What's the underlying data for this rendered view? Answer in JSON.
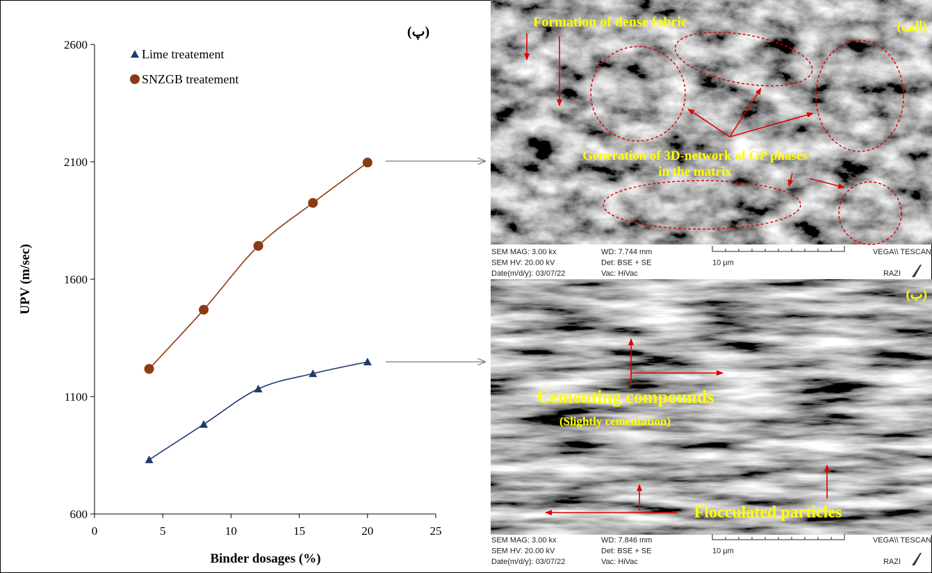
{
  "chart_data": {
    "type": "scatter",
    "panel_label": "(پ)",
    "x_label": "Binder dosages (%)",
    "y_label": "UPV (m/sec)",
    "x": [
      4,
      8,
      12,
      16,
      20
    ],
    "series": [
      {
        "name": "Lime treatement",
        "color": "#1f3a6e",
        "marker": "triangle",
        "values": [
          831,
          982,
          1133,
          1198,
          1248
        ]
      },
      {
        "name": "SNZGB treatement",
        "color": "#8b3a12",
        "marker": "circle",
        "values": [
          1218,
          1470,
          1742,
          1925,
          2097
        ]
      }
    ],
    "xlim": [
      0,
      25
    ],
    "xticks": [
      0,
      5,
      10,
      15,
      20,
      25
    ],
    "ylim": [
      600,
      2600
    ],
    "yticks": [
      600,
      1100,
      1600,
      2100,
      2600
    ],
    "grid": false,
    "legend": "upper left",
    "trendline": true
  },
  "panels": [
    {
      "label": "(الف)",
      "annotations": [
        "Formation of dense fabric",
        "Generation of  3D-network of GP phases",
        "in the matrix"
      ],
      "info": [
        "SEM MAG: 3.00 kx",
        "WD: 7.744 mm",
        "VEGA\\\\ TESCAN",
        "SEM HV: 20.00 kV",
        "Det: BSE + SE",
        "10 µm",
        "Date(m/d/y): 03/07/22",
        "Vac: HiVac",
        "RAZI"
      ]
    },
    {
      "label": "(ب)",
      "annotations": [
        "Cementing compounds",
        "(Slightly cementation)",
        "Flocculated particles"
      ],
      "info": [
        "SEM MAG: 3.00 kx",
        "WD: 7.846 mm",
        "VEGA\\\\ TESCAN",
        "SEM HV: 20.00 kV",
        "Det: BSE + SE",
        "10 µm",
        "Date(m/d/y): 03/07/22",
        "Vac: HiVac",
        "RAZI"
      ]
    }
  ]
}
